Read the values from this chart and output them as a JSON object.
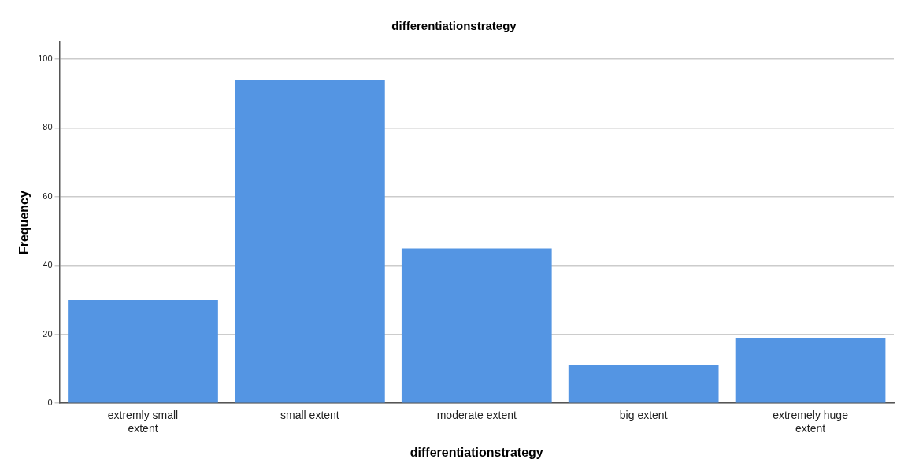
{
  "chart_data": {
    "type": "bar",
    "title": "differentiationstrategy",
    "xlabel": "differentiationstrategy",
    "ylabel": "Frequency",
    "categories": [
      "extremly small extent",
      "small extent",
      "moderate extent",
      "big extent",
      "extremely huge extent"
    ],
    "values": [
      30,
      94,
      45,
      11,
      19
    ],
    "color": "#5495e3",
    "ylim": [
      0,
      105
    ],
    "yticks": [
      0,
      20,
      40,
      60,
      80,
      100
    ],
    "grid": "y",
    "legend": false
  }
}
